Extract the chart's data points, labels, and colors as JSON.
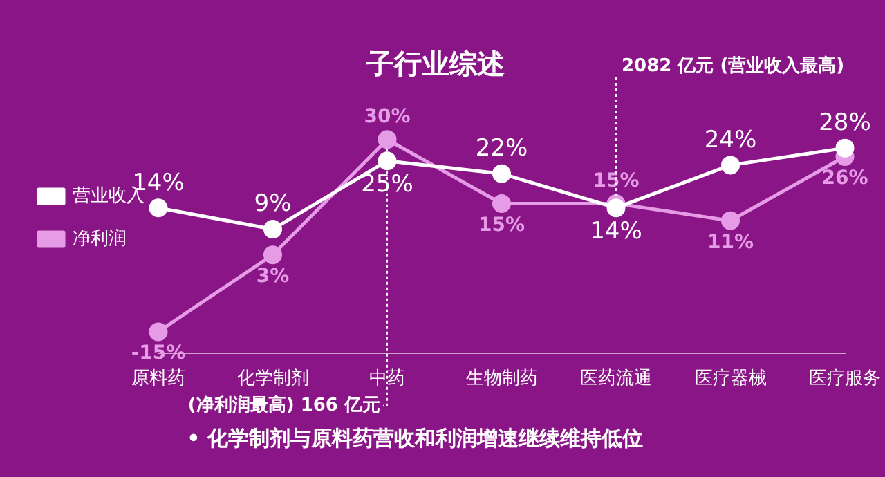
{
  "chart_data": {
    "type": "line",
    "title": "子行业综述",
    "categories": [
      "原料药",
      "化学制剂",
      "中药",
      "生物制药",
      "医药流通",
      "医疗器械",
      "医疗服务"
    ],
    "series": [
      {
        "name": "营业收入",
        "color": "#ffffff",
        "values": [
          14,
          9,
          25,
          22,
          14,
          24,
          28
        ],
        "value_labels": [
          "14%",
          "9%",
          "25%",
          "22%",
          "14%",
          "24%",
          "28%"
        ]
      },
      {
        "name": "净利润",
        "color": "#e59be6",
        "values": [
          -15,
          3,
          30,
          15,
          15,
          11,
          26
        ],
        "value_labels": [
          "-15%",
          "3%",
          "30%",
          "15%",
          "15%",
          "11%",
          "26%"
        ]
      }
    ],
    "tick_labels": "x",
    "legend": "left",
    "marker": "circle",
    "grid": false,
    "annotations": [
      {
        "text": "2082 亿元 (营业收入最高)",
        "x": "医药流通",
        "y": 14
      },
      {
        "text": "(净利润最高) 166 亿元",
        "x": "中药",
        "y": 30
      },
      "• 化学制剂与原料药营收和利润增速继续维持低位"
    ]
  }
}
